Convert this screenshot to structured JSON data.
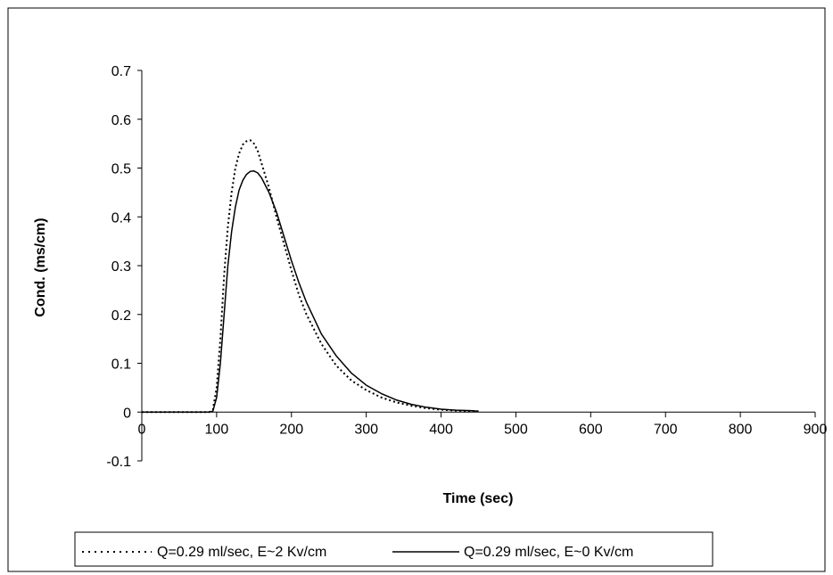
{
  "chart_data": {
    "type": "line",
    "xlabel": "Time (sec)",
    "ylabel": "Cond. (ms/cm)",
    "xlim": [
      0,
      900
    ],
    "ylim": [
      -0.1,
      0.7
    ],
    "xticks": [
      0,
      100,
      200,
      300,
      400,
      500,
      600,
      700,
      800,
      900
    ],
    "yticks": [
      -0.1,
      0,
      0.1,
      0.2,
      0.3,
      0.4,
      0.5,
      0.6,
      0.7
    ],
    "xtick_labels": [
      "0",
      "100",
      "200",
      "300",
      "400",
      "500",
      "600",
      "700",
      "800",
      "900"
    ],
    "ytick_labels": [
      "-0.1",
      "0",
      "0.1",
      "0.2",
      "0.3",
      "0.4",
      "0.5",
      "0.6",
      "0.7"
    ],
    "grid": false,
    "legend_position": "bottom",
    "series": [
      {
        "name": "Q=0.29 ml/sec, E~2 Kv/cm",
        "line_style": "dotted",
        "color": "#000000",
        "x": [
          0,
          60,
          90,
          95,
          100,
          105,
          110,
          115,
          120,
          125,
          130,
          135,
          140,
          145,
          150,
          155,
          160,
          170,
          180,
          190,
          200,
          210,
          220,
          240,
          260,
          280,
          300,
          320,
          340,
          360,
          380,
          400,
          420,
          440,
          450
        ],
        "y": [
          0,
          0,
          0,
          0.005,
          0.05,
          0.15,
          0.28,
          0.38,
          0.45,
          0.5,
          0.53,
          0.548,
          0.555,
          0.557,
          0.55,
          0.535,
          0.51,
          0.46,
          0.4,
          0.345,
          0.29,
          0.24,
          0.2,
          0.14,
          0.095,
          0.065,
          0.045,
          0.03,
          0.02,
          0.013,
          0.008,
          0.005,
          0.003,
          0.002,
          0.002
        ]
      },
      {
        "name": "Q=0.29 ml/sec, E~0 Kv/cm",
        "line_style": "solid",
        "color": "#000000",
        "x": [
          0,
          60,
          90,
          95,
          100,
          105,
          110,
          115,
          120,
          125,
          130,
          135,
          140,
          145,
          150,
          155,
          160,
          170,
          180,
          190,
          200,
          210,
          220,
          240,
          260,
          280,
          300,
          320,
          340,
          360,
          380,
          400,
          420,
          440,
          450
        ],
        "y": [
          0,
          0,
          0,
          0.002,
          0.03,
          0.1,
          0.2,
          0.3,
          0.37,
          0.42,
          0.455,
          0.475,
          0.487,
          0.493,
          0.494,
          0.49,
          0.48,
          0.45,
          0.41,
          0.36,
          0.31,
          0.265,
          0.225,
          0.16,
          0.115,
          0.08,
          0.055,
          0.038,
          0.025,
          0.016,
          0.01,
          0.006,
          0.004,
          0.003,
          0.002
        ]
      }
    ]
  }
}
